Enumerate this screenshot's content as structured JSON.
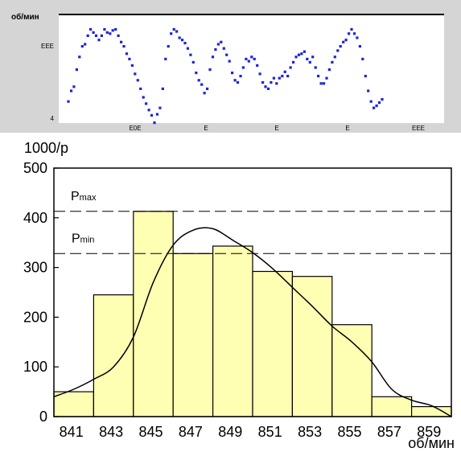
{
  "chart_data": [
    {
      "type": "line",
      "ylabel": "об/мин",
      "y_tick_labels": [
        "",
        "",
        "EEE",
        "",
        "",
        "",
        "",
        "4"
      ],
      "x_tick_labels": [
        "",
        "E0E",
        "E",
        "E",
        "E",
        "EEE"
      ],
      "series": [
        {
          "values": [
            0.18,
            0.28,
            0.32,
            0.48,
            0.6,
            0.7,
            0.72,
            0.8,
            0.86,
            0.83,
            0.8,
            0.76,
            0.8,
            0.86,
            0.83,
            0.82,
            0.85,
            0.86,
            0.8,
            0.74,
            0.7,
            0.63,
            0.58,
            0.52,
            0.44,
            0.38,
            0.3,
            0.22,
            0.16,
            0.1,
            0.05,
            -0.02,
            0.06,
            0.12,
            0.3,
            0.58,
            0.7,
            0.82,
            0.86,
            0.84,
            0.78,
            0.76,
            0.73,
            0.68,
            0.62,
            0.55,
            0.45,
            0.38,
            0.34,
            0.26,
            0.3,
            0.48,
            0.6,
            0.67,
            0.72,
            0.74,
            0.68,
            0.62,
            0.56,
            0.45,
            0.38,
            0.36,
            0.42,
            0.5,
            0.58,
            0.56,
            0.6,
            0.58,
            0.52,
            0.44,
            0.36,
            0.32,
            0.3,
            0.36,
            0.4,
            0.35,
            0.4,
            0.42,
            0.46,
            0.42,
            0.5,
            0.55,
            0.6,
            0.62,
            0.63,
            0.65,
            0.58,
            0.55,
            0.6,
            0.5,
            0.42,
            0.35,
            0.35,
            0.4,
            0.48,
            0.55,
            0.6,
            0.66,
            0.7,
            0.74,
            0.76,
            0.82,
            0.86,
            0.82,
            0.78,
            0.7,
            0.58,
            0.42,
            0.28,
            0.18,
            0.12,
            0.14,
            0.17,
            0.2
          ]
        }
      ],
      "line_color": "#1c24d8",
      "grid": false
    },
    {
      "type": "bar",
      "title": "",
      "ylabel": "1000/p",
      "xlabel": "об/мин",
      "categories": [
        "841",
        "843",
        "845",
        "847",
        "849",
        "851",
        "853",
        "855",
        "857",
        "859"
      ],
      "values": [
        50,
        245,
        413,
        328,
        343,
        292,
        282,
        185,
        40,
        20
      ],
      "ylim": [
        0,
        500
      ],
      "y_ticks": [
        0,
        100,
        200,
        300,
        400,
        500
      ],
      "bar_color": "#ffffb4",
      "curve": {
        "x": [
          840,
          841,
          842,
          843,
          844,
          845,
          846,
          847,
          848,
          849,
          850,
          851,
          852,
          853,
          854,
          855,
          856,
          857,
          858,
          859,
          860
        ],
        "y": [
          40,
          55,
          75,
          100,
          160,
          270,
          345,
          375,
          378,
          355,
          330,
          298,
          260,
          222,
          182,
          150,
          110,
          55,
          33,
          22,
          0
        ]
      },
      "annotations": [
        {
          "label": "P",
          "subscript": "max",
          "value": 413
        },
        {
          "label": "P",
          "subscript": "min",
          "value": 328
        }
      ],
      "grid": false
    }
  ]
}
